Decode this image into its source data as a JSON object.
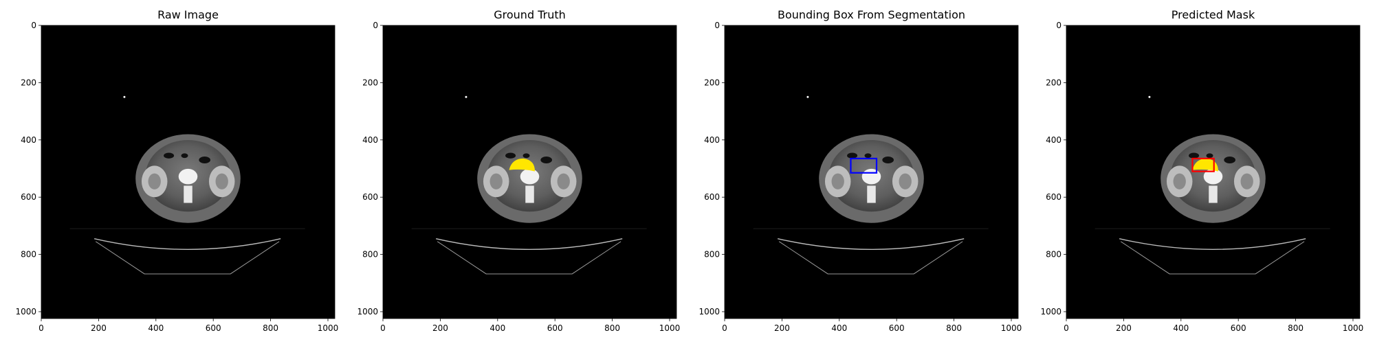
{
  "colors": {
    "background": "#ffffff",
    "axes": "#000000",
    "bbox": "#0000ff",
    "pred_box": "#ff0000",
    "mask": "#ffe600"
  },
  "axis": {
    "x_ticks": [
      0,
      200,
      400,
      600,
      800,
      1000
    ],
    "y_ticks": [
      0,
      200,
      400,
      600,
      800,
      1000
    ],
    "x_range": [
      0,
      1024
    ],
    "y_range": [
      0,
      1024
    ]
  },
  "panels": [
    {
      "id": "raw",
      "title": "Raw Image",
      "overlay": "none"
    },
    {
      "id": "gt",
      "title": "Ground Truth",
      "overlay": "mask"
    },
    {
      "id": "bbox",
      "title": "Bounding Box From Segmentation",
      "overlay": "bbox",
      "box": {
        "x0": 440,
        "y0": 465,
        "x1": 530,
        "y1": 515
      }
    },
    {
      "id": "pred",
      "title": "Predicted Mask",
      "overlay": "mask+box",
      "box": {
        "x0": 440,
        "y0": 465,
        "x1": 515,
        "y1": 510
      }
    }
  ]
}
